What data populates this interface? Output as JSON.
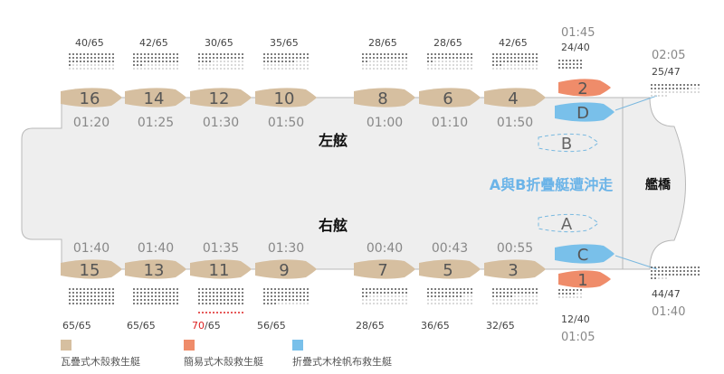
{
  "ship": {
    "port_label": "左舷",
    "starboard_label": "右舷",
    "bridge_label": "艦橋",
    "event_note": "A與B折疊艇遭沖走"
  },
  "colors": {
    "wooden": "#d6bfa0",
    "simple": "#ef8c6a",
    "folding": "#79c0ea",
    "hull_fill": "#eeeeee",
    "hull_stroke": "#b8b8b8",
    "time": "#888888",
    "count": "#444444",
    "highlight": "#dd2222",
    "note": "#6bb4e8"
  },
  "boats": [
    {
      "id": "16",
      "type": "wooden",
      "side": "port",
      "capacity": "40/65",
      "time": "01:20"
    },
    {
      "id": "14",
      "type": "wooden",
      "side": "port",
      "capacity": "42/65",
      "time": "01:25"
    },
    {
      "id": "12",
      "type": "wooden",
      "side": "port",
      "capacity": "30/65",
      "time": "01:30"
    },
    {
      "id": "10",
      "type": "wooden",
      "side": "port",
      "capacity": "35/65",
      "time": "01:50"
    },
    {
      "id": "8",
      "type": "wooden",
      "side": "port",
      "capacity": "28/65",
      "time": "01:00"
    },
    {
      "id": "6",
      "type": "wooden",
      "side": "port",
      "capacity": "28/65",
      "time": "01:10"
    },
    {
      "id": "4",
      "type": "wooden",
      "side": "port",
      "capacity": "42/65",
      "time": "01:50"
    },
    {
      "id": "2",
      "type": "simple",
      "side": "port",
      "capacity": "24/40",
      "time": "01:45"
    },
    {
      "id": "D",
      "type": "folding",
      "side": "port",
      "capacity": "25/47",
      "time": "02:05"
    },
    {
      "id": "B",
      "type": "washed",
      "side": "port",
      "capacity": "",
      "time": ""
    },
    {
      "id": "15",
      "type": "wooden",
      "side": "starboard",
      "capacity": "65/65",
      "time": "01:40"
    },
    {
      "id": "13",
      "type": "wooden",
      "side": "starboard",
      "capacity": "65/65",
      "time": "01:40"
    },
    {
      "id": "11",
      "type": "wooden",
      "side": "starboard",
      "capacity_main": "70",
      "capacity_rest": "/65",
      "time": "01:35"
    },
    {
      "id": "9",
      "type": "wooden",
      "side": "starboard",
      "capacity": "56/65",
      "time": "01:30"
    },
    {
      "id": "7",
      "type": "wooden",
      "side": "starboard",
      "capacity": "28/65",
      "time": "00:40"
    },
    {
      "id": "5",
      "type": "wooden",
      "side": "starboard",
      "capacity": "36/65",
      "time": "00:43"
    },
    {
      "id": "3",
      "type": "wooden",
      "side": "starboard",
      "capacity": "32/65",
      "time": "00:55"
    },
    {
      "id": "1",
      "type": "simple",
      "side": "starboard",
      "capacity": "12/40",
      "time": "01:05"
    },
    {
      "id": "C",
      "type": "folding",
      "side": "starboard",
      "capacity": "44/47",
      "time": "01:40"
    },
    {
      "id": "A",
      "type": "washed",
      "side": "starboard",
      "capacity": "",
      "time": ""
    }
  ],
  "legend": [
    {
      "type": "wooden",
      "label": "瓦疊式木殼救生艇"
    },
    {
      "type": "simple",
      "label": "簡易式木殼救生艇"
    },
    {
      "type": "folding",
      "label": "折疊式木栓帆布救生艇"
    }
  ]
}
